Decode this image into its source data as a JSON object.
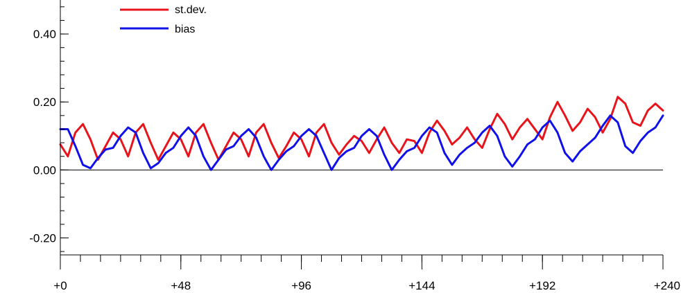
{
  "chart_data": {
    "type": "line",
    "title": "",
    "xlabel": "",
    "ylabel": "",
    "xlim": [
      0,
      240
    ],
    "ylim": [
      -0.25,
      0.5
    ],
    "x_ticks": [
      0,
      48,
      96,
      144,
      192,
      240
    ],
    "x_tick_labels": [
      "+0",
      "+48",
      "+96",
      "+144",
      "+192",
      "+240"
    ],
    "y_ticks": [
      -0.2,
      0.0,
      0.2,
      0.4
    ],
    "y_tick_labels": [
      "-0.20",
      "0.00",
      "0.20",
      "0.40"
    ],
    "grid": false,
    "zero_line": true,
    "legend_position": "top-left",
    "x": [
      0,
      3,
      6,
      9,
      12,
      15,
      18,
      21,
      24,
      27,
      30,
      33,
      36,
      39,
      42,
      45,
      48,
      51,
      54,
      57,
      60,
      63,
      66,
      69,
      72,
      75,
      78,
      81,
      84,
      87,
      90,
      93,
      96,
      99,
      102,
      105,
      108,
      111,
      114,
      117,
      120,
      123,
      126,
      129,
      132,
      135,
      138,
      141,
      144,
      147,
      150,
      153,
      156,
      159,
      162,
      165,
      168,
      171,
      174,
      177,
      180,
      183,
      186,
      189,
      192,
      195,
      198,
      201,
      204,
      207,
      210,
      213,
      216,
      219,
      222,
      225,
      228,
      231,
      234,
      237,
      240
    ],
    "series": [
      {
        "name": "st.dev.",
        "color": "#e8141c",
        "values": [
          0.075,
          0.04,
          0.11,
          0.135,
          0.09,
          0.03,
          0.07,
          0.11,
          0.09,
          0.04,
          0.11,
          0.135,
          0.08,
          0.03,
          0.07,
          0.11,
          0.09,
          0.04,
          0.11,
          0.135,
          0.08,
          0.03,
          0.07,
          0.11,
          0.09,
          0.04,
          0.11,
          0.135,
          0.08,
          0.035,
          0.07,
          0.11,
          0.09,
          0.04,
          0.11,
          0.135,
          0.08,
          0.045,
          0.075,
          0.1,
          0.085,
          0.05,
          0.09,
          0.125,
          0.08,
          0.05,
          0.09,
          0.085,
          0.05,
          0.11,
          0.145,
          0.115,
          0.075,
          0.095,
          0.125,
          0.09,
          0.065,
          0.12,
          0.165,
          0.135,
          0.09,
          0.125,
          0.15,
          0.12,
          0.09,
          0.155,
          0.2,
          0.16,
          0.115,
          0.14,
          0.18,
          0.155,
          0.11,
          0.15,
          0.215,
          0.195,
          0.14,
          0.13,
          0.175,
          0.195,
          0.175
        ]
      },
      {
        "name": "bias",
        "color": "#1010e8",
        "values": [
          0.12,
          0.12,
          0.07,
          0.015,
          0.005,
          0.035,
          0.06,
          0.065,
          0.1,
          0.125,
          0.11,
          0.05,
          0.005,
          0.02,
          0.05,
          0.065,
          0.1,
          0.125,
          0.1,
          0.04,
          0.0,
          0.03,
          0.06,
          0.07,
          0.1,
          0.12,
          0.095,
          0.04,
          0.0,
          0.03,
          0.055,
          0.07,
          0.1,
          0.12,
          0.1,
          0.05,
          0.0,
          0.035,
          0.055,
          0.065,
          0.1,
          0.12,
          0.1,
          0.045,
          0.0,
          0.03,
          0.055,
          0.065,
          0.1,
          0.125,
          0.11,
          0.05,
          0.015,
          0.045,
          0.065,
          0.08,
          0.11,
          0.13,
          0.1,
          0.04,
          0.01,
          0.04,
          0.075,
          0.09,
          0.125,
          0.145,
          0.11,
          0.05,
          0.025,
          0.055,
          0.075,
          0.095,
          0.13,
          0.16,
          0.14,
          0.07,
          0.05,
          0.085,
          0.11,
          0.125,
          0.16
        ]
      }
    ]
  }
}
